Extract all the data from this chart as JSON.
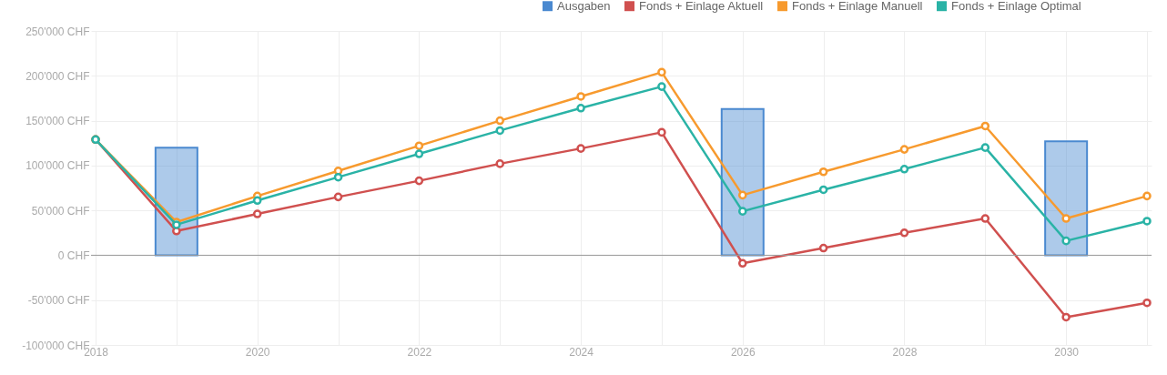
{
  "chart_data": {
    "type": "line",
    "x": [
      2018,
      2019,
      2020,
      2021,
      2022,
      2023,
      2024,
      2025,
      2026,
      2027,
      2028,
      2029,
      2030,
      2031
    ],
    "xlim": [
      2018,
      2031
    ],
    "xticks": [
      2018,
      {
        "value": 2019,
        "label": null
      },
      2020,
      {
        "value": 2021,
        "label": null
      },
      2022,
      {
        "value": 2023,
        "label": null
      },
      2024,
      {
        "value": 2025,
        "label": null
      },
      2026,
      {
        "value": 2027,
        "label": null
      },
      2028,
      {
        "value": 2029,
        "label": null
      },
      2030,
      {
        "value": 2031,
        "label": null
      }
    ],
    "ylim": [
      -100000,
      250000
    ],
    "yticks": [
      {
        "value": -100000,
        "label": "-100'000 CHF"
      },
      {
        "value": -50000,
        "label": "-50'000 CHF"
      },
      {
        "value": 0,
        "label": "0 CHF"
      },
      {
        "value": 50000,
        "label": "50'000 CHF"
      },
      {
        "value": 100000,
        "label": "100'000 CHF"
      },
      {
        "value": 150000,
        "label": "150'000 CHF"
      },
      {
        "value": 200000,
        "label": "200'000 CHF"
      },
      {
        "value": 250000,
        "label": "250'000 CHF"
      }
    ],
    "series": [
      {
        "name": "Ausgaben",
        "type": "bar",
        "color": "#4a89d0",
        "x": [
          2019,
          2026,
          2030
        ],
        "values": [
          120000,
          163000,
          127000
        ]
      },
      {
        "name": "Fonds + Einlage Aktuell",
        "color": "#d0504f",
        "values": [
          129000,
          27000,
          46000,
          65000,
          83000,
          102000,
          119000,
          137000,
          -9000,
          8000,
          25000,
          41000,
          -69000,
          -53000
        ]
      },
      {
        "name": "Fonds + Einlage Manuell",
        "color": "#f79a2e",
        "values": [
          129000,
          37000,
          66000,
          94000,
          122000,
          150000,
          177000,
          204000,
          67000,
          93000,
          118000,
          144000,
          41000,
          66000
        ]
      },
      {
        "name": "Fonds + Einlage Optimal",
        "color": "#2ab3a6",
        "values": [
          129000,
          34000,
          61000,
          87000,
          113000,
          139000,
          164000,
          188000,
          49000,
          73000,
          96000,
          120000,
          16000,
          38000
        ]
      }
    ],
    "ref_lines": [
      {
        "axis": "y",
        "value": 0,
        "color": "#999999"
      }
    ],
    "grid": true,
    "legend": "top right",
    "marker": "circle"
  }
}
